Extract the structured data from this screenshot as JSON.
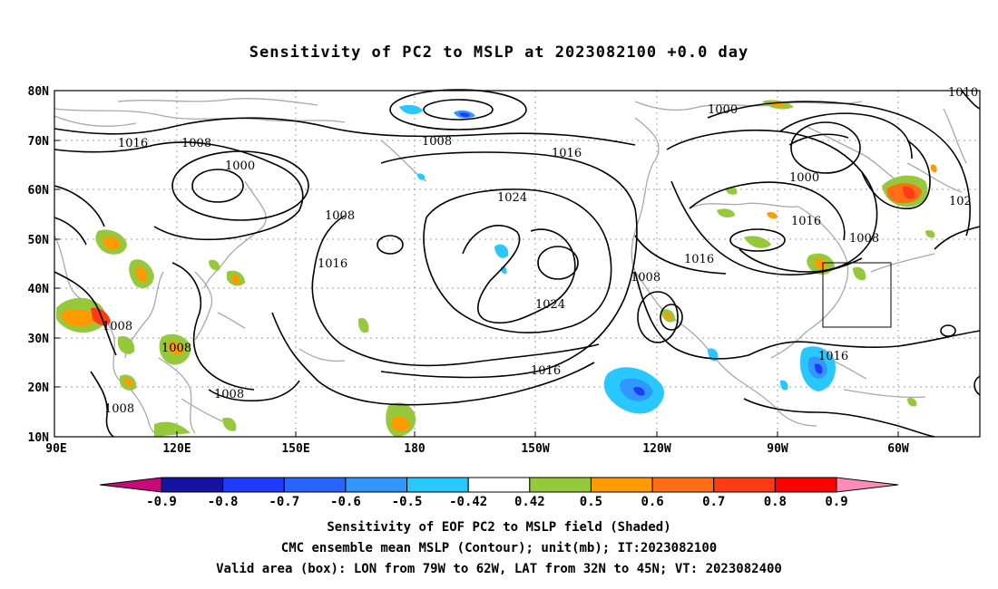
{
  "title": "Sensitivity of PC2 to MSLP at 2023082100 +0.0 day",
  "axes": {
    "y_ticks": [
      "80N",
      "70N",
      "60N",
      "50N",
      "40N",
      "30N",
      "20N",
      "10N"
    ],
    "x_ticks": [
      "90E",
      "120E",
      "150E",
      "180",
      "150W",
      "120W",
      "90W",
      "60W"
    ]
  },
  "contour_labels": [
    "1016",
    "1008",
    "1000",
    "1008",
    "1016",
    "1008",
    "1008",
    "1008",
    "1008",
    "1008",
    "1016",
    "1024",
    "1024",
    "1016",
    "1016",
    "1008",
    "1016",
    "1000",
    "1000",
    "1016",
    "1008",
    "1016",
    "102",
    "1010"
  ],
  "colorbar": {
    "labels": [
      "-0.9",
      "-0.8",
      "-0.7",
      "-0.6",
      "-0.5",
      "-0.42",
      "0.42",
      "0.5",
      "0.6",
      "0.7",
      "0.8",
      "0.9"
    ],
    "colors": [
      "#1414a0",
      "#1e3cff",
      "#2864ff",
      "#3296ff",
      "#28c8ff",
      "#ffffff",
      "#96c83c",
      "#ff9b00",
      "#ff6e14",
      "#ff3c14",
      "#ff0000"
    ],
    "low_end_color": "#c80a78",
    "high_end_color": "#ff8cb4"
  },
  "footer": {
    "line1": "Sensitivity of EOF PC2 to MSLP field (Shaded)",
    "line2": "CMC ensemble mean MSLP (Contour); unit(mb); IT:2023082100",
    "line3": "Valid area (box): LON from 79W to 62W, LAT from 32N to 45N; VT: 2023082400"
  },
  "colors": {
    "contour": "#000000",
    "coastline": "#a0a0a0",
    "grid": "#a0a0a0",
    "positive_green": "#96c83c",
    "positive_orange": "#ff9b00",
    "positive_red": "#ff3c14",
    "negative_blue": "#28c8ff",
    "negative_dark": "#1e3cff"
  }
}
